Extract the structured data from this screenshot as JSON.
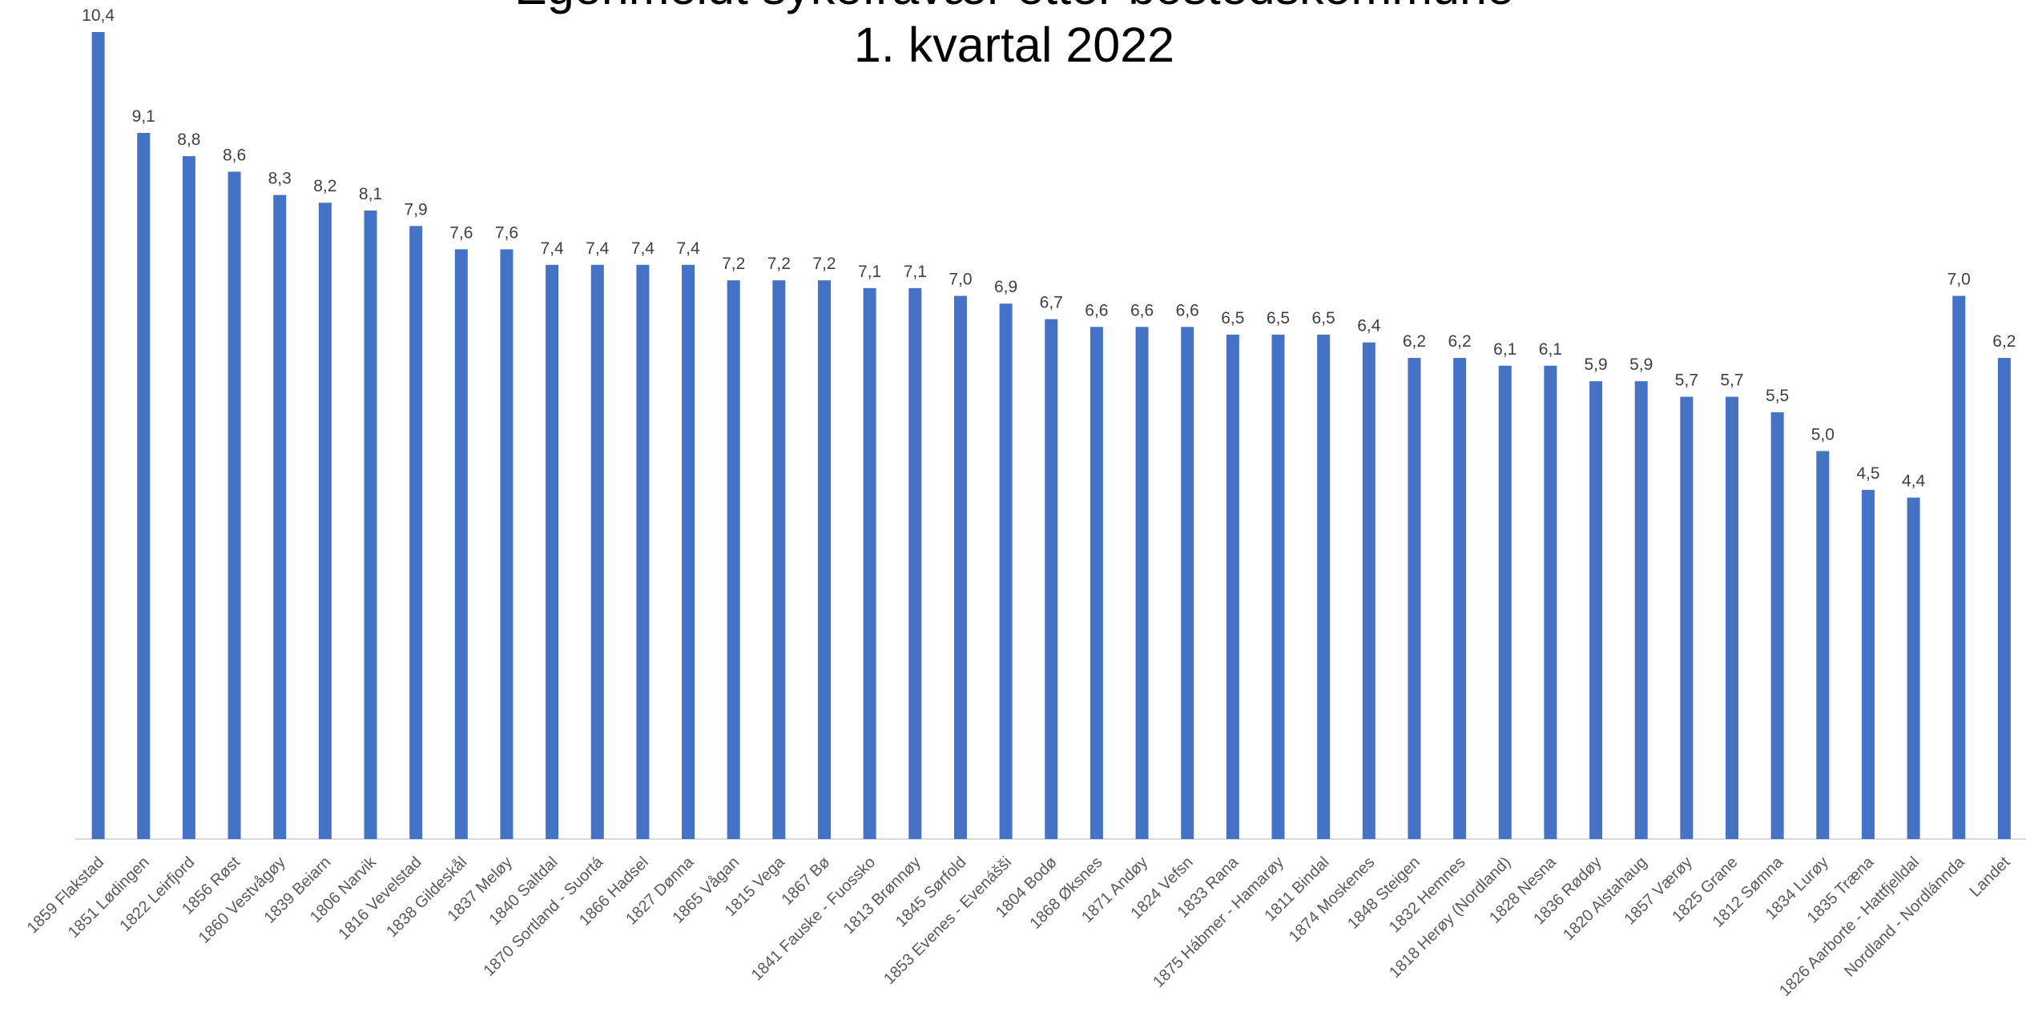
{
  "chart_data": {
    "type": "bar",
    "title": "Egenmeldt sykefravær etter bostedskommune",
    "subtitle": "1. kvartal 2022",
    "color": "#4472c4",
    "categories": [
      "1859 Flakstad",
      "1851 Lødingen",
      "1822 Leirfjord",
      "1856 Røst",
      "1860 Vestvågøy",
      "1839 Beiarn",
      "1806 Narvik",
      "1816 Vevelstad",
      "1838 Gildeskål",
      "1837 Meløy",
      "1840 Saltdal",
      "1870 Sortland - Suortá",
      "1866 Hadsel",
      "1827 Dønna",
      "1865 Vågan",
      "1815 Vega",
      "1867 Bø",
      "1841 Fauske - Fuossko",
      "1813 Brønnøy",
      "1845 Sørfold",
      "1853 Evenes - Evenášši",
      "1804 Bodø",
      "1868 Øksnes",
      "1871 Andøy",
      "1824 Vefsn",
      "1833 Rana",
      "1875 Hábmer - Hamarøy",
      "1811 Bindal",
      "1874 Moskenes",
      "1848 Steigen",
      "1832 Hemnes",
      "1818 Herøy (Nordland)",
      "1828 Nesna",
      "1836 Rødøy",
      "1820 Alstahaug",
      "1857 Værøy",
      "1825 Grane",
      "1812 Sømna",
      "1834 Lurøy",
      "1835 Træna",
      "1826 Aarborte - Hattfjelldal",
      "Nordland - Nordlánnda",
      "Landet"
    ],
    "values": [
      10.4,
      9.1,
      8.8,
      8.6,
      8.3,
      8.2,
      8.1,
      7.9,
      7.6,
      7.6,
      7.4,
      7.4,
      7.4,
      7.4,
      7.2,
      7.2,
      7.2,
      7.1,
      7.1,
      7.0,
      6.9,
      6.7,
      6.6,
      6.6,
      6.6,
      6.5,
      6.5,
      6.5,
      6.4,
      6.2,
      6.2,
      6.1,
      6.1,
      5.9,
      5.9,
      5.7,
      5.7,
      5.5,
      5.0,
      4.5,
      4.4,
      7.0,
      6.2
    ],
    "value_labels": [
      "10,4",
      "9,1",
      "8,8",
      "8,6",
      "8,3",
      "8,2",
      "8,1",
      "7,9",
      "7,6",
      "7,6",
      "7,4",
      "7,4",
      "7,4",
      "7,4",
      "7,2",
      "7,2",
      "7,2",
      "7,1",
      "7,1",
      "7,0",
      "6,9",
      "6,7",
      "6,6",
      "6,6",
      "6,6",
      "6,5",
      "6,5",
      "6,5",
      "6,4",
      "6,2",
      "6,2",
      "6,1",
      "6,1",
      "5,9",
      "5,9",
      "5,7",
      "5,7",
      "5,5",
      "5,0",
      "4,5",
      "4,4",
      "7,0",
      "6,2"
    ]
  }
}
